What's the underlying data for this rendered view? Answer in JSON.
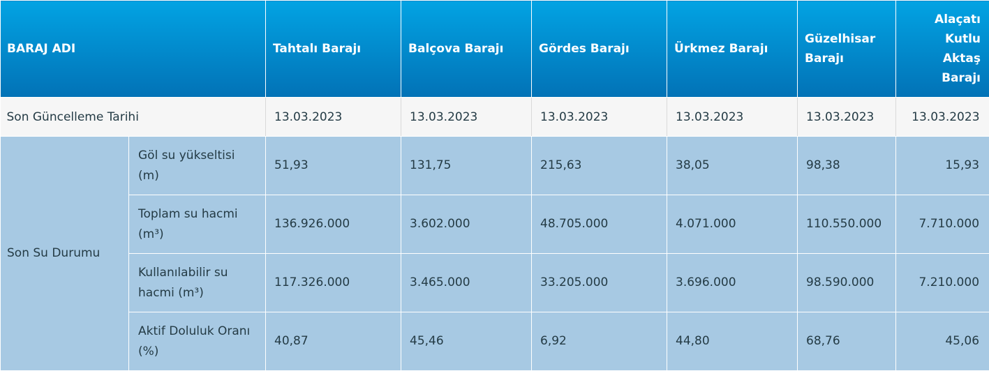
{
  "header": {
    "name_label": "BARAJ ADI",
    "dams": [
      {
        "name": "Tahtalı Barajı"
      },
      {
        "name": "Balçova Barajı"
      },
      {
        "name": "Gördes Barajı"
      },
      {
        "name": "Ürkmez Barajı"
      },
      {
        "name": "Güzelhisar Barajı"
      },
      {
        "name": "Alaçatı Kutlu Aktaş Barajı"
      }
    ]
  },
  "update_row": {
    "label": "Son Güncelleme Tarihi",
    "values": [
      "13.03.2023",
      "13.03.2023",
      "13.03.2023",
      "13.03.2023",
      "13.03.2023",
      "13.03.2023"
    ]
  },
  "status": {
    "group_label": "Son Su Durumu",
    "rows": [
      {
        "label": "Göl su yükseltisi (m)",
        "values": [
          "51,93",
          "131,75",
          "215,63",
          "38,05",
          "98,38",
          "15,93"
        ]
      },
      {
        "label": "Toplam su hacmi (m³)",
        "values": [
          "136.926.000",
          "3.602.000",
          "48.705.000",
          "4.071.000",
          "110.550.000",
          "7.710.000"
        ]
      },
      {
        "label": "Kullanılabilir su hacmi (m³)",
        "values": [
          "117.326.000",
          "3.465.000",
          "33.205.000",
          "3.696.000",
          "98.590.000",
          "7.210.000"
        ]
      },
      {
        "label": "Aktif Doluluk Oranı (%)",
        "values": [
          "40,87",
          "45,46",
          "6,92",
          "44,80",
          "68,76",
          "45,06"
        ]
      }
    ]
  },
  "colors": {
    "header_top": "#02a3e3",
    "header_bottom": "#0272b6",
    "update_row_bg": "#f6f6f6",
    "status_bg": "#a7c9e3"
  }
}
